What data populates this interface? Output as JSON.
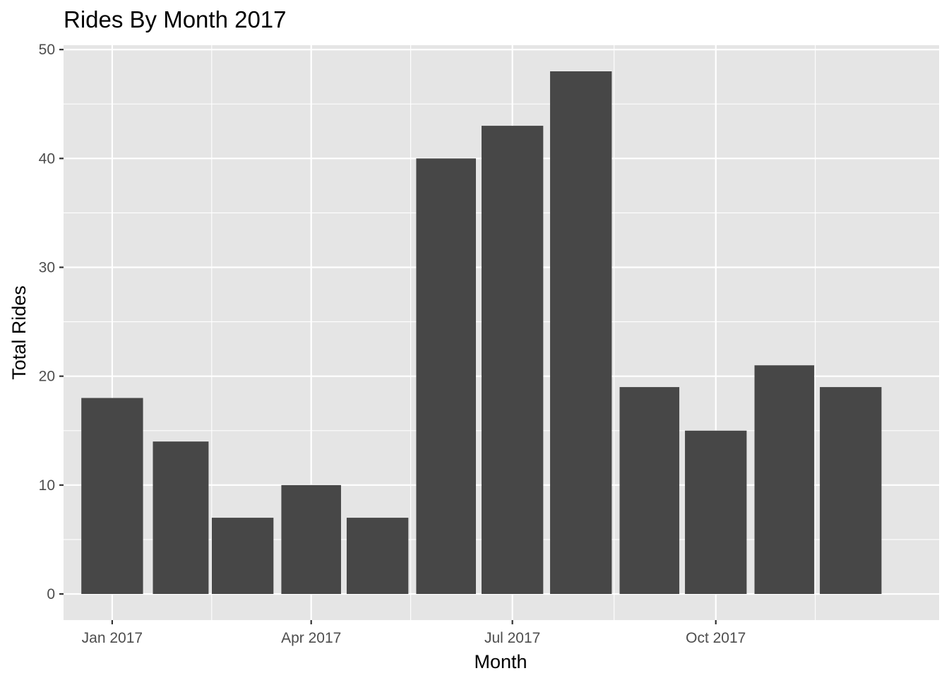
{
  "chart_data": {
    "type": "bar",
    "title": "Rides By Month 2017",
    "xlabel": "Month",
    "ylabel": "Total Rides",
    "categories": [
      "2017-01",
      "2017-02",
      "2017-03",
      "2017-04",
      "2017-05",
      "2017-06",
      "2017-07",
      "2017-08",
      "2017-09",
      "2017-10",
      "2017-11",
      "2017-12"
    ],
    "values": [
      18,
      14,
      7,
      10,
      7,
      40,
      43,
      48,
      19,
      15,
      21,
      19
    ],
    "x_ticks": [
      {
        "date": "2017-01-01",
        "label": "Jan 2017"
      },
      {
        "date": "2017-04-01",
        "label": "Apr 2017"
      },
      {
        "date": "2017-07-01",
        "label": "Jul 2017"
      },
      {
        "date": "2017-10-01",
        "label": "Oct 2017"
      }
    ],
    "x_minor_ticks": [
      "2017-02-15",
      "2017-05-16",
      "2017-08-16",
      "2017-11-15"
    ],
    "xlim": [
      "2016-12-10",
      "2018-01-10"
    ],
    "y_ticks": [
      0,
      10,
      20,
      30,
      40,
      50
    ],
    "ylim": [
      -2.4,
      50.4
    ],
    "bar_color": "#474747",
    "panel_color": "#e5e5e5",
    "grid": true
  }
}
